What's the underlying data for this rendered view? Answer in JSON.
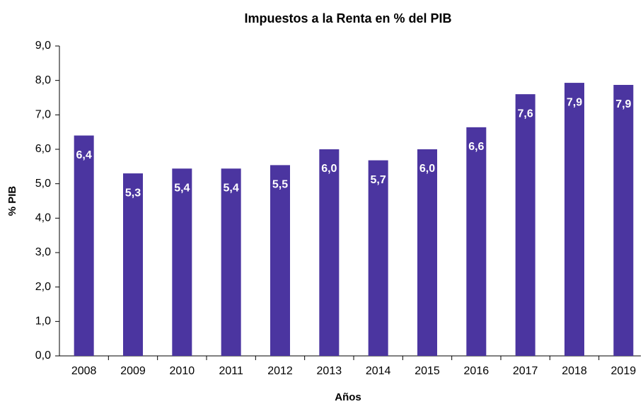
{
  "chart_data": {
    "type": "bar",
    "title": "Impuestos a la Renta en % del PIB",
    "x_label": "Años",
    "y_label": "% PIB",
    "categories": [
      "2008",
      "2009",
      "2010",
      "2011",
      "2012",
      "2013",
      "2014",
      "2015",
      "2016",
      "2017",
      "2018",
      "2019"
    ],
    "values": [
      6.4,
      5.3,
      5.44,
      5.44,
      5.54,
      6.0,
      5.68,
      6.0,
      6.64,
      7.6,
      7.93,
      7.87
    ],
    "value_labels": [
      "6,4",
      "5,3",
      "5,4",
      "5,4",
      "5,5",
      "6,0",
      "5,7",
      "6,0",
      "6,6",
      "7,6",
      "7,9",
      "7,9"
    ],
    "color": "#4b35a0",
    "ylim": [
      0,
      9
    ],
    "yticks": [
      {
        "value": 0,
        "label": "0,0"
      },
      {
        "value": 1,
        "label": "1,0"
      },
      {
        "value": 2,
        "label": "2,0"
      },
      {
        "value": 3,
        "label": "3,0"
      },
      {
        "value": 4,
        "label": "4,0"
      },
      {
        "value": 5,
        "label": "5,0"
      },
      {
        "value": 6,
        "label": "6,0"
      },
      {
        "value": 7,
        "label": "7,0"
      },
      {
        "value": 8,
        "label": "8,0"
      },
      {
        "value": 9,
        "label": "9,0"
      }
    ],
    "grid": false
  }
}
